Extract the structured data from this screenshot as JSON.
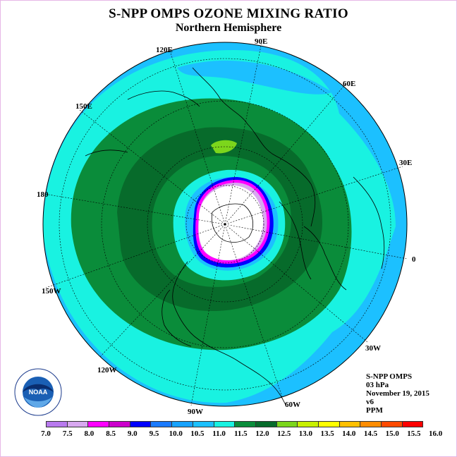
{
  "title": "S-NPP OMPS OZONE MIXING RATIO",
  "subtitle": "Northern Hemisphere",
  "logo": {
    "text": "NOAA",
    "ring_text": "NATIONAL OCEANIC AND ATMOSPHERIC ADMINISTRATION · U.S. DEPARTMENT OF COMMERCE"
  },
  "longitude_labels": [
    "90E",
    "60E",
    "30E",
    "0",
    "30W",
    "60W",
    "90W",
    "120W",
    "150W",
    "180",
    "150E",
    "120E"
  ],
  "info": {
    "instrument": "S-NPP OMPS",
    "level": "03 hPa",
    "date": "November 19, 2015",
    "version": "v6",
    "units": "PPM"
  },
  "colorbar": {
    "ticks": [
      "7.0",
      "7.5",
      "8.0",
      "8.5",
      "9.0",
      "9.5",
      "10.0",
      "10.5",
      "11.0",
      "11.5",
      "12.0",
      "12.5",
      "13.0",
      "13.5",
      "14.0",
      "14.5",
      "15.0",
      "15.5",
      "16.0"
    ],
    "colors": [
      "#b87aee",
      "#d8a8f0",
      "#ff00ff",
      "#cc00cc",
      "#0000ff",
      "#1a7aff",
      "#17a2ff",
      "#1cc0ff",
      "#19f2e1",
      "#0a8c3a",
      "#076b2b",
      "#7cd61c",
      "#c8f000",
      "#ffff00",
      "#ffc000",
      "#ff8c00",
      "#ff4a00",
      "#ff0000",
      "#8b4513"
    ]
  }
}
